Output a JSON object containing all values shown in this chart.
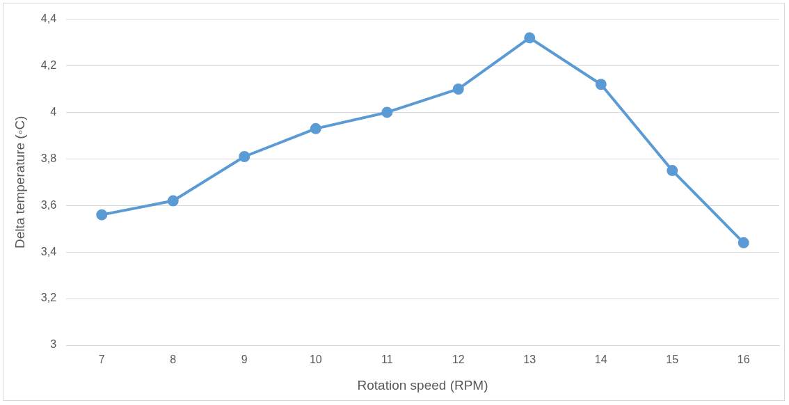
{
  "chart_data": {
    "type": "line",
    "xlabel": "Rotation speed (RPM)",
    "ylabel": "Delta temperature (◦C)",
    "categories": [
      "7",
      "8",
      "9",
      "10",
      "11",
      "12",
      "13",
      "14",
      "15",
      "16"
    ],
    "series": [
      {
        "color": "#5b9bd5",
        "values": [
          3.56,
          3.62,
          3.81,
          3.93,
          4.0,
          4.1,
          4.32,
          4.12,
          3.75,
          3.44
        ]
      }
    ],
    "ylim": [
      3,
      4.4
    ],
    "yticks": [
      3,
      {
        "value": 3.2,
        "label": "3,2"
      },
      {
        "value": 3.4,
        "label": "3,4"
      },
      {
        "value": 3.6,
        "label": "3,6"
      },
      {
        "value": 3.8,
        "label": "3,8"
      },
      4,
      {
        "value": 4.2,
        "label": "4,2"
      },
      {
        "value": 4.4,
        "label": "4,4"
      }
    ],
    "grid": "y",
    "marker": "circle",
    "line_style": "solid",
    "legend": false
  }
}
